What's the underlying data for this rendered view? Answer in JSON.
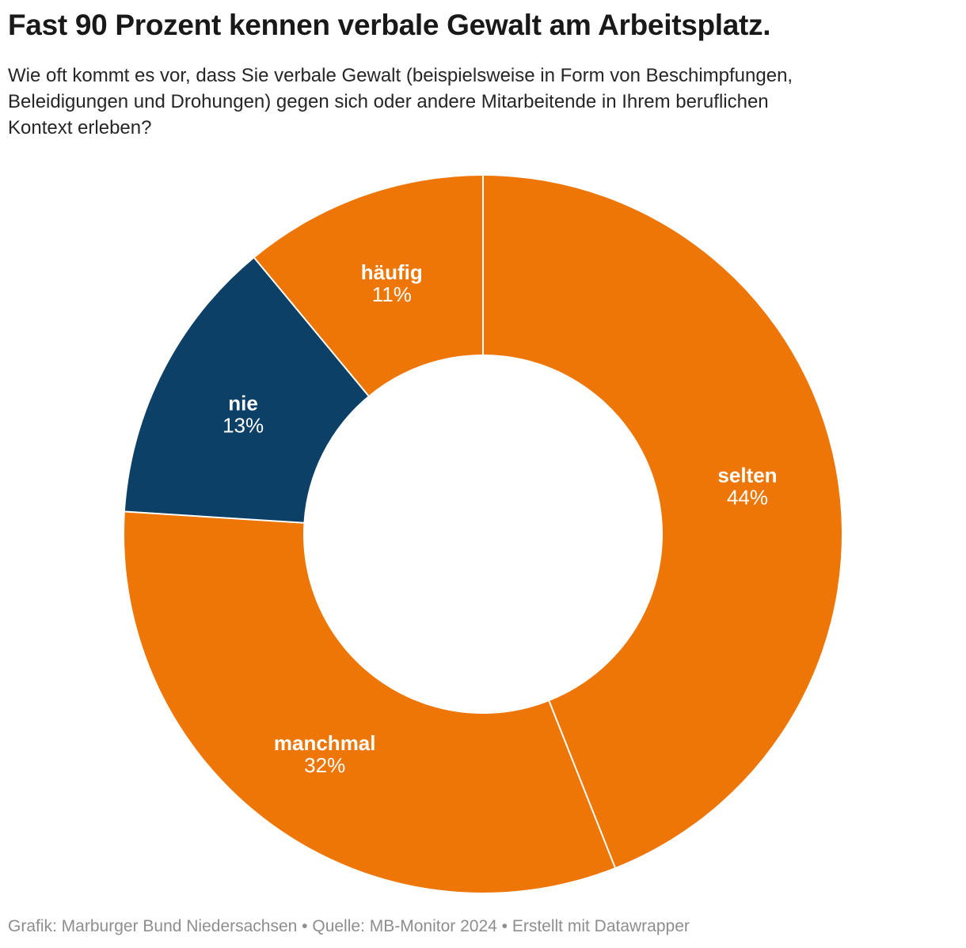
{
  "header": {
    "title": "Fast 90 Prozent kennen verbale Gewalt am Arbeitsplatz.",
    "subtitle_lines": [
      "Wie oft kommt es vor, dass Sie verbale Gewalt (beispielsweise in Form von Beschimpfungen,",
      "Beleidigungen und Drohungen) gegen sich oder andere Mitarbeitende in Ihrem beruflichen",
      "Kontext erleben?"
    ]
  },
  "footer": {
    "text": "Grafik: Marburger Bund Niedersachsen • Quelle: MB-Monitor 2024 • Erstellt mit Datawrapper"
  },
  "colors": {
    "orange": "#ED7607",
    "dark_blue": "#0C4066",
    "label_text": "#FFFFFF",
    "divider": "#FFFFFF",
    "title_text": "#191919",
    "subtitle_text": "#262626",
    "footer_text": "#8E8E8E"
  },
  "chart_data": {
    "type": "pie",
    "variant": "donut",
    "title": "Fast 90 Prozent kennen verbale Gewalt am Arbeitsplatz.",
    "units": "%",
    "start_angle_deg": 0,
    "direction": "clockwise",
    "inner_radius_ratio": 0.5,
    "legend_position": "inside-slices",
    "segments": [
      {
        "label": "selten",
        "value": 44,
        "display": "44%",
        "color": "#ED7607"
      },
      {
        "label": "manchmal",
        "value": 32,
        "display": "32%",
        "color": "#ED7607"
      },
      {
        "label": "nie",
        "value": 13,
        "display": "13%",
        "color": "#0C4066"
      },
      {
        "label": "häufig",
        "value": 11,
        "display": "11%",
        "color": "#ED7607"
      }
    ]
  }
}
